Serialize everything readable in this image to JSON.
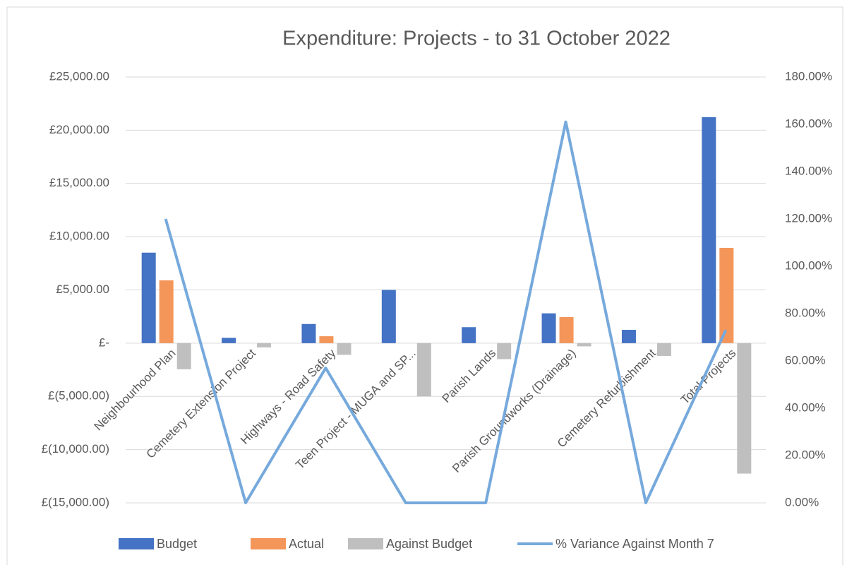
{
  "chart_data": {
    "type": "bar",
    "title": "Expenditure: Projects - to 31 October 2022",
    "categories": [
      "Neighbourhood Plan",
      "Cemetery Extension Project",
      "Highways - Road Safety",
      "Teen Project - MUGA and SP...",
      "Parish Lands",
      "Parish Groundworks (Drainage)",
      "Cemetery Refurbishment",
      "Total Projects"
    ],
    "series": [
      {
        "name": "Budget",
        "color": "#4472c4",
        "type": "bar",
        "values": [
          8500,
          500,
          1800,
          5000,
          1500,
          2800,
          1250,
          21230
        ]
      },
      {
        "name": "Actual",
        "color": "#f4965a",
        "type": "bar",
        "values": [
          5900,
          0,
          650,
          0,
          0,
          2450,
          0,
          8950
        ]
      },
      {
        "name": "Against Budget",
        "color": "#bfbfbf",
        "type": "bar",
        "values": [
          -2450,
          -400,
          -1100,
          -5000,
          -1500,
          -300,
          -1200,
          -12250
        ]
      },
      {
        "name": "% Variance Against Month 7",
        "color": "#76a9dc",
        "type": "line",
        "axis": "y2",
        "values": [
          120,
          0,
          57,
          0,
          0,
          161,
          0,
          73
        ]
      }
    ],
    "ylim": [
      -15000,
      25000
    ],
    "yticks": [
      {
        "value": -15000,
        "label": "£(15,000.00)"
      },
      {
        "value": -10000,
        "label": "£(10,000.00)"
      },
      {
        "value": -5000,
        "label": "£(5,000.00)"
      },
      {
        "value": 0,
        "label": "£-"
      },
      {
        "value": 5000,
        "label": "£5,000.00"
      },
      {
        "value": 10000,
        "label": "£10,000.00"
      },
      {
        "value": 15000,
        "label": "£15,000.00"
      },
      {
        "value": 20000,
        "label": "£20,000.00"
      },
      {
        "value": 25000,
        "label": "£25,000.00"
      }
    ],
    "y2lim": [
      0,
      180
    ],
    "y2ticks": [
      {
        "value": 0,
        "label": "0.00%"
      },
      {
        "value": 20,
        "label": "20.00%"
      },
      {
        "value": 40,
        "label": "40.00%"
      },
      {
        "value": 60,
        "label": "60.00%"
      },
      {
        "value": 80,
        "label": "80.00%"
      },
      {
        "value": 100,
        "label": "100.00%"
      },
      {
        "value": 120,
        "label": "120.00%"
      },
      {
        "value": 140,
        "label": "140.00%"
      },
      {
        "value": 160,
        "label": "160.00%"
      },
      {
        "value": 180,
        "label": "180.00%"
      }
    ],
    "grid": true,
    "legend": "bottom"
  }
}
